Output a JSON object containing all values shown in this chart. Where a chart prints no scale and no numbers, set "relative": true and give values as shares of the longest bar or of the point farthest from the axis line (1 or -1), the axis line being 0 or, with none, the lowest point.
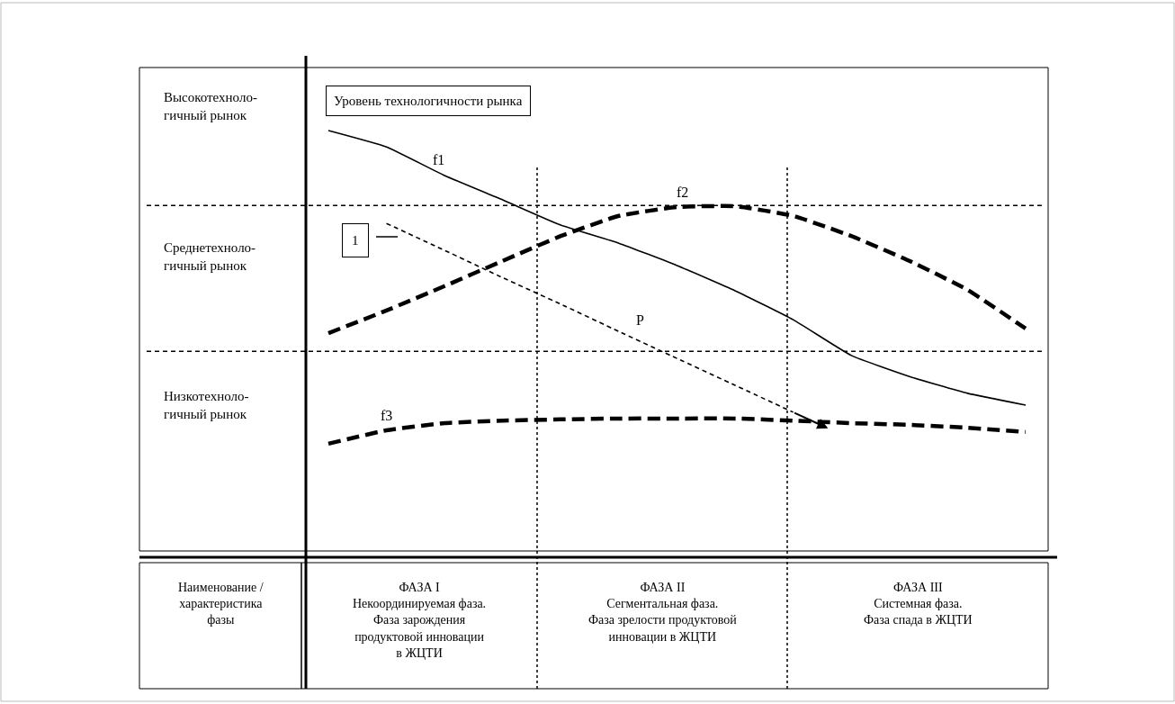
{
  "chart_data": {
    "type": "line",
    "relative": true,
    "ylabel": "Уровень технологичности рынка",
    "categories": [
      null,
      null,
      null,
      null,
      null,
      null,
      null,
      null,
      null,
      null,
      null,
      null,
      null
    ],
    "series": [
      {
        "name": "f1",
        "color": "#000000",
        "line_style": "solid",
        "values": [
          1.0,
          0.961,
          0.893,
          0.835,
          0.775,
          0.732,
          0.679,
          0.619,
          0.55,
          0.465,
          0.415,
          0.375,
          0.347
        ]
      },
      {
        "name": "f2",
        "color": "#000000",
        "line_style": "dashed",
        "values": [
          0.518,
          0.572,
          0.63,
          0.69,
          0.749,
          0.797,
          0.818,
          0.82,
          0.797,
          0.749,
          0.69,
          0.621,
          0.529
        ]
      },
      {
        "name": "f3",
        "color": "#000000",
        "line_style": "dashed",
        "values": [
          0.255,
          0.287,
          0.304,
          0.31,
          0.313,
          0.315,
          0.315,
          0.315,
          0.31,
          0.304,
          0.3,
          0.293,
          0.283
        ]
      },
      {
        "name": "P",
        "color": "#000000",
        "line_style": "dotted",
        "values": [
          null,
          0.779,
          0.715,
          0.65,
          0.587,
          0.522,
          0.458,
          0.394,
          0.33,
          null,
          null,
          null,
          null
        ]
      }
    ],
    "ref_lines": [
      {
        "axis": "y",
        "value": 0.822,
        "line_style": "dotted"
      },
      {
        "axis": "y",
        "value": 0.475,
        "line_style": "dotted"
      }
    ],
    "annotations": [
      "Высокотехноло-\nгичный рынок",
      "Среднетехноло-\nгичный рынок",
      "Низкотехноло-\nгичный рынок",
      "Наименование /\nхарактеристика\nфазы",
      "ФАЗА I\nНекоординируемая фаза.\nФаза зарождения\nпродуктовой инновации\nв ЖЦТИ",
      "ФАЗА II\nСегментальная фаза.\nФаза зрелости продуктовой\nинновации в ЖЦТИ",
      "ФАЗА III\nСистемная фаза.\nФаза спада в ЖЦТИ",
      "1"
    ],
    "legend": false,
    "marker": "none"
  }
}
